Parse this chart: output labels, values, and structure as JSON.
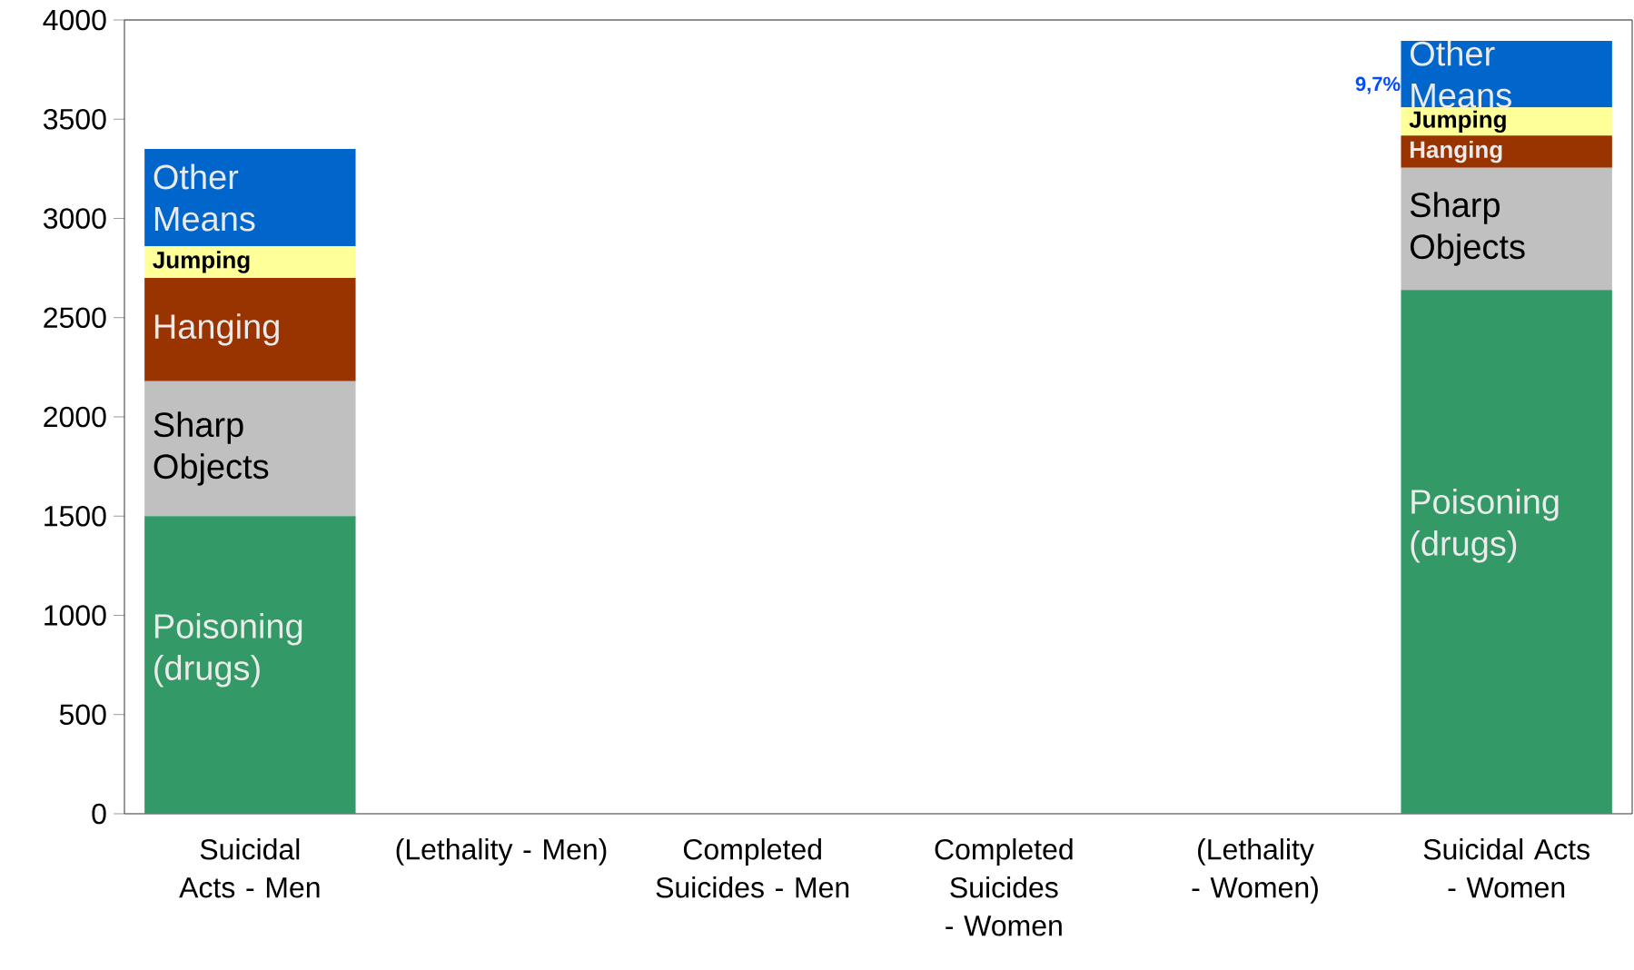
{
  "chart_data": {
    "type": "bar",
    "stacked": true,
    "categories": [
      "Suicidal Acts - Men",
      "(Lethality - Men)",
      "Completed Suicides - Men",
      "Completed Suicides - Women",
      "(Lethality - Women)",
      "Suicidal Acts - Women"
    ],
    "series": [
      {
        "name": "Poisoning (drugs)",
        "color": "#339966",
        "values": [
          1500,
          null,
          null,
          null,
          null,
          2640
        ]
      },
      {
        "name": "Sharp Objects",
        "color": "#c0c0c0",
        "values": [
          680,
          null,
          null,
          null,
          null,
          615
        ]
      },
      {
        "name": "Hanging",
        "color": "#993300",
        "values": [
          520,
          null,
          null,
          null,
          null,
          162
        ]
      },
      {
        "name": "Jumping",
        "color": "#ffff99",
        "values": [
          160,
          null,
          null,
          null,
          null,
          142
        ]
      },
      {
        "name": "Other Means",
        "color": "#0066cc",
        "values": [
          490,
          null,
          null,
          null,
          null,
          336
        ]
      }
    ],
    "ylim": [
      0,
      4000
    ],
    "yticks": [
      0,
      500,
      1000,
      1500,
      2000,
      2500,
      3000,
      3500,
      4000
    ],
    "annotations": [
      "9,7%"
    ],
    "legend": false,
    "grid": false
  }
}
